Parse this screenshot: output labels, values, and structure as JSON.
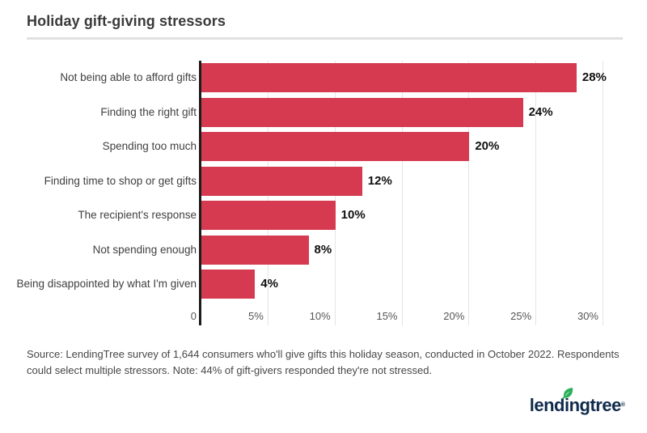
{
  "title": "Holiday gift-giving stressors",
  "chart_data": {
    "type": "bar",
    "orientation": "horizontal",
    "title": "Holiday gift-giving stressors",
    "categories": [
      "Not being able to afford gifts",
      "Finding the right gift",
      "Spending too much",
      "Finding time to shop or get gifts",
      "The recipient's response",
      "Not spending enough",
      "Being disappointed by what I'm given"
    ],
    "values": [
      28,
      24,
      20,
      12,
      10,
      8,
      4
    ],
    "value_labels": [
      "28%",
      "24%",
      "20%",
      "12%",
      "10%",
      "8%",
      "4%"
    ],
    "xlim": [
      0,
      30
    ],
    "x_tick_values": [
      0,
      5,
      10,
      15,
      20,
      25,
      30
    ],
    "x_tick_labels": [
      "0",
      "5%",
      "10%",
      "15%",
      "20%",
      "25%",
      "30%"
    ],
    "grid": true,
    "legend": "none",
    "bar_color": "#d63a50",
    "axis_color": "#1c1c1c",
    "gridline_color": "#e4e4e4"
  },
  "footer": {
    "source_text": "Source: LendingTree survey of 1,644 consumers who'll give gifts this holiday season, conducted in October 2022. Respondents could select multiple stressors. Note: 44% of gift-givers responded they're not stressed."
  },
  "logo": {
    "text": "lendingtree",
    "registered_mark": "®",
    "navy_color": "#102a4c",
    "leaf_color": "#2bb05a"
  }
}
